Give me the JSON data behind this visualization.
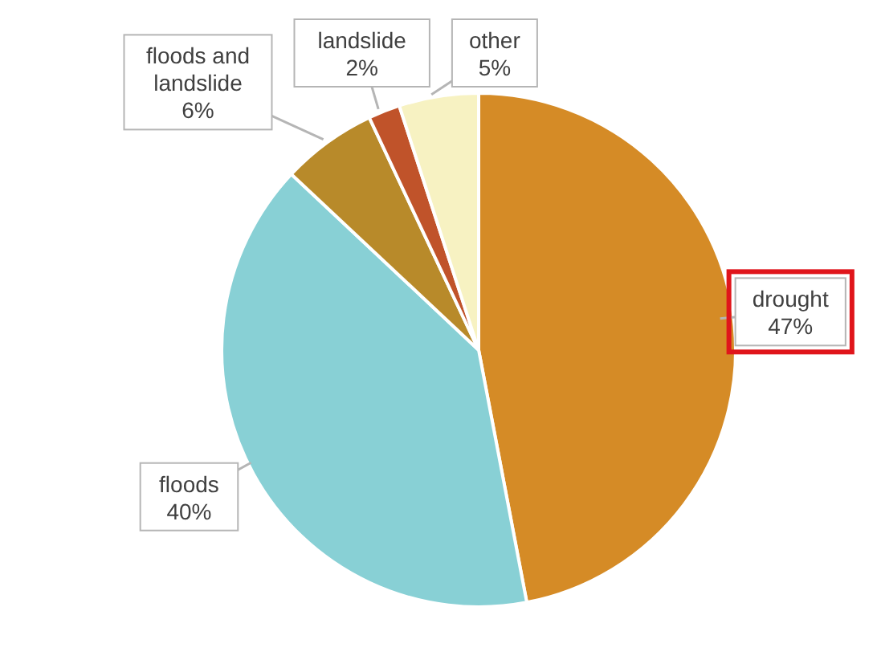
{
  "chart_data": {
    "type": "pie",
    "categories": [
      "drought",
      "floods",
      "floods and landslide",
      "landslide",
      "other"
    ],
    "values": [
      47,
      40,
      6,
      2,
      5
    ],
    "value_labels": [
      "47%",
      "40%",
      "6%",
      "2%",
      "5%"
    ],
    "colors": [
      "#d58b26",
      "#88d0d5",
      "#b88a2a",
      "#c0532a",
      "#f7f2c2"
    ]
  }
}
